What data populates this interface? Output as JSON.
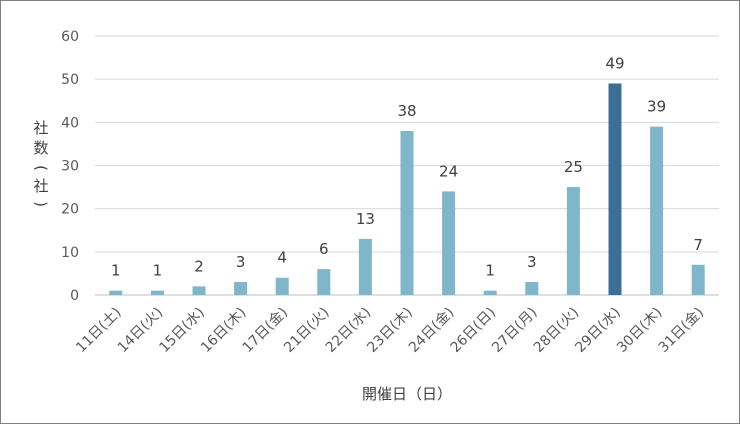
{
  "chart_data": {
    "type": "bar",
    "title": "",
    "xlabel": "開催日（日）",
    "ylabel_chars": [
      "社",
      "数",
      "(",
      "社",
      ")"
    ],
    "ylim": [
      0,
      60
    ],
    "yticks": [
      "0",
      "10",
      "20",
      "30",
      "40",
      "50",
      "60"
    ],
    "grid": true,
    "categories": [
      "11日(土)",
      "14日(火)",
      "15日(水)",
      "16日(木)",
      "17日(金)",
      "21日(火)",
      "22日(水)",
      "23日(木)",
      "24日(金)",
      "26日(日)",
      "27日(月)",
      "28日(火)",
      "29日(水)",
      "30日(木)",
      "31日(金)"
    ],
    "values": [
      1,
      1,
      2,
      3,
      4,
      6,
      13,
      38,
      24,
      1,
      3,
      25,
      49,
      39,
      7
    ],
    "value_labels": [
      "1",
      "1",
      "2",
      "3",
      "4",
      "6",
      "13",
      "38",
      "24",
      "1",
      "3",
      "25",
      "49",
      "39",
      "7"
    ],
    "highlight_index": 12,
    "colors": {
      "bar": "#7fb6c9",
      "highlight": "#3d6f96",
      "grid": "#d9d9d9",
      "baseline": "#bfbfbf"
    }
  }
}
